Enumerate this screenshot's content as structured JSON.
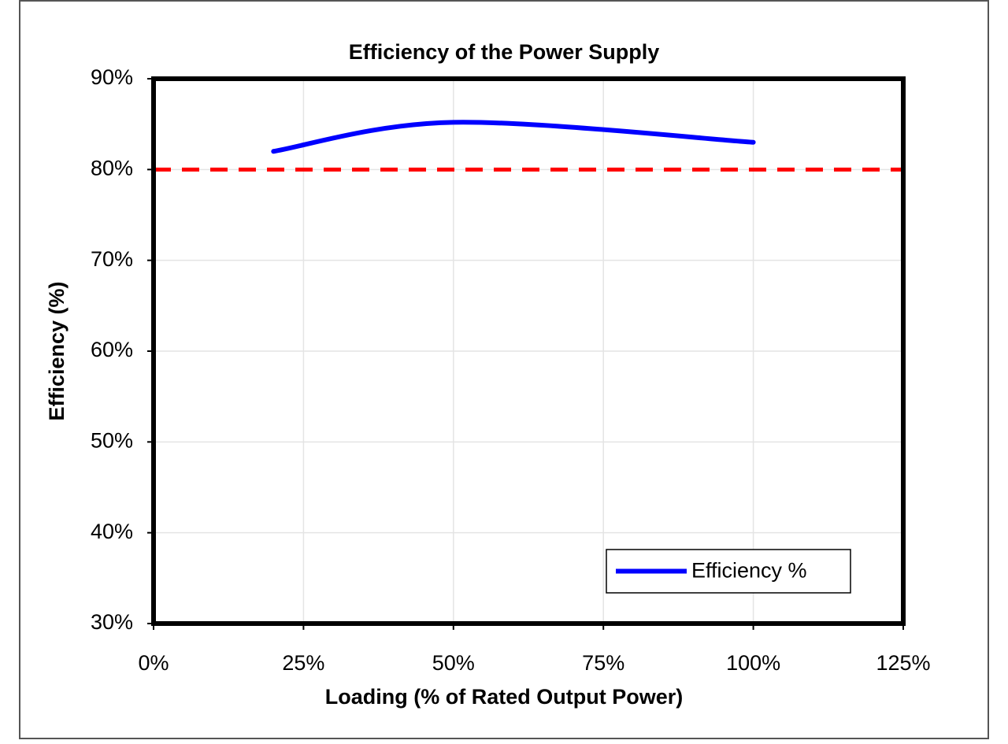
{
  "chart_data": {
    "type": "line",
    "title": "Efficiency of the Power Supply",
    "x_label": "Loading (% of Rated Output Power)",
    "y_label": "Efficiency (%)",
    "x": [
      20,
      50,
      100
    ],
    "series": [
      {
        "name": "Efficiency %",
        "color": "#0000ff",
        "values": [
          82,
          85.2,
          83
        ]
      }
    ],
    "reference_line": {
      "value": 80,
      "color": "#ff0000"
    },
    "xlim": [
      0,
      125
    ],
    "xticks": [
      {
        "value": 0,
        "label": "0%"
      },
      {
        "value": 25,
        "label": "25%"
      },
      {
        "value": 50,
        "label": "50%"
      },
      {
        "value": 75,
        "label": "75%"
      },
      {
        "value": 100,
        "label": "100%"
      },
      {
        "value": 125,
        "label": "125%"
      }
    ],
    "ylim": [
      30,
      90
    ],
    "yticks": [
      {
        "value": 30,
        "label": "30%"
      },
      {
        "value": 40,
        "label": "40%"
      },
      {
        "value": 50,
        "label": "50%"
      },
      {
        "value": 60,
        "label": "60%"
      },
      {
        "value": 70,
        "label": "70%"
      },
      {
        "value": 80,
        "label": "80%"
      },
      {
        "value": 90,
        "label": "90%"
      }
    ],
    "grid": true,
    "legend": "lower right"
  }
}
